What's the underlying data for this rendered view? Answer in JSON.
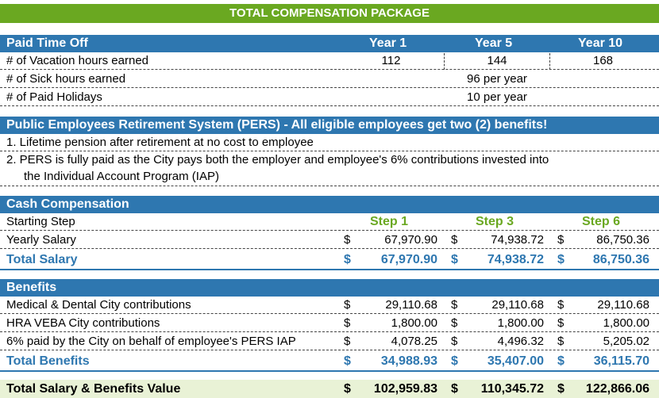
{
  "title": "TOTAL COMPENSATION PACKAGE",
  "pto": {
    "header": "Paid Time Off",
    "col1": "Year 1",
    "col2": "Year 5",
    "col3": "Year 10",
    "vacation_label": "# of Vacation hours earned",
    "vacation_y1": "112",
    "vacation_y5": "144",
    "vacation_y10": "168",
    "sick_label": "# of Sick hours earned",
    "sick_value": "96 per year",
    "holidays_label": "# of Paid Holidays",
    "holidays_value": "10 per year"
  },
  "pers": {
    "header": "Public Employees Retirement System (PERS) - All eligible employees get two (2) benefits!",
    "item1": "1. Lifetime pension after retirement at no cost to employee",
    "item2_line1": "2.  PERS is fully paid as the City pays both the employer and employee's 6% contributions invested into",
    "item2_line2": "the Individual Account Program (IAP)"
  },
  "cash": {
    "header": "Cash Compensation",
    "starting_label": "Starting Step",
    "step1": "Step 1",
    "step3": "Step 3",
    "step6": "Step 6",
    "salary_label": "Yearly Salary",
    "currency": "$",
    "salary_s1": "67,970.90",
    "salary_s3": "74,938.72",
    "salary_s6": "86,750.36",
    "total_label": "Total Salary",
    "total_s1": "67,970.90",
    "total_s3": "74,938.72",
    "total_s6": "86,750.36"
  },
  "benefits": {
    "header": "Benefits",
    "rows": [
      {
        "label": "Medical & Dental City contributions",
        "s1": "29,110.68",
        "s3": "29,110.68",
        "s6": "29,110.68"
      },
      {
        "label": "HRA VEBA City contributions",
        "s1": "1,800.00",
        "s3": "1,800.00",
        "s6": "1,800.00"
      },
      {
        "label": "6% paid by the City on behalf of employee's PERS IAP",
        "s1": "4,078.25",
        "s3": "4,496.32",
        "s6": "5,205.02"
      }
    ],
    "total_label": "Total Benefits",
    "total_s1": "34,988.93",
    "total_s3": "35,407.00",
    "total_s6": "36,115.70"
  },
  "grand": {
    "label": "Total Salary & Benefits Value",
    "s1": "102,959.83",
    "s3": "110,345.72",
    "s6": "122,866.06"
  },
  "colors": {
    "green": "#6aa821",
    "blue": "#2e77b0"
  }
}
